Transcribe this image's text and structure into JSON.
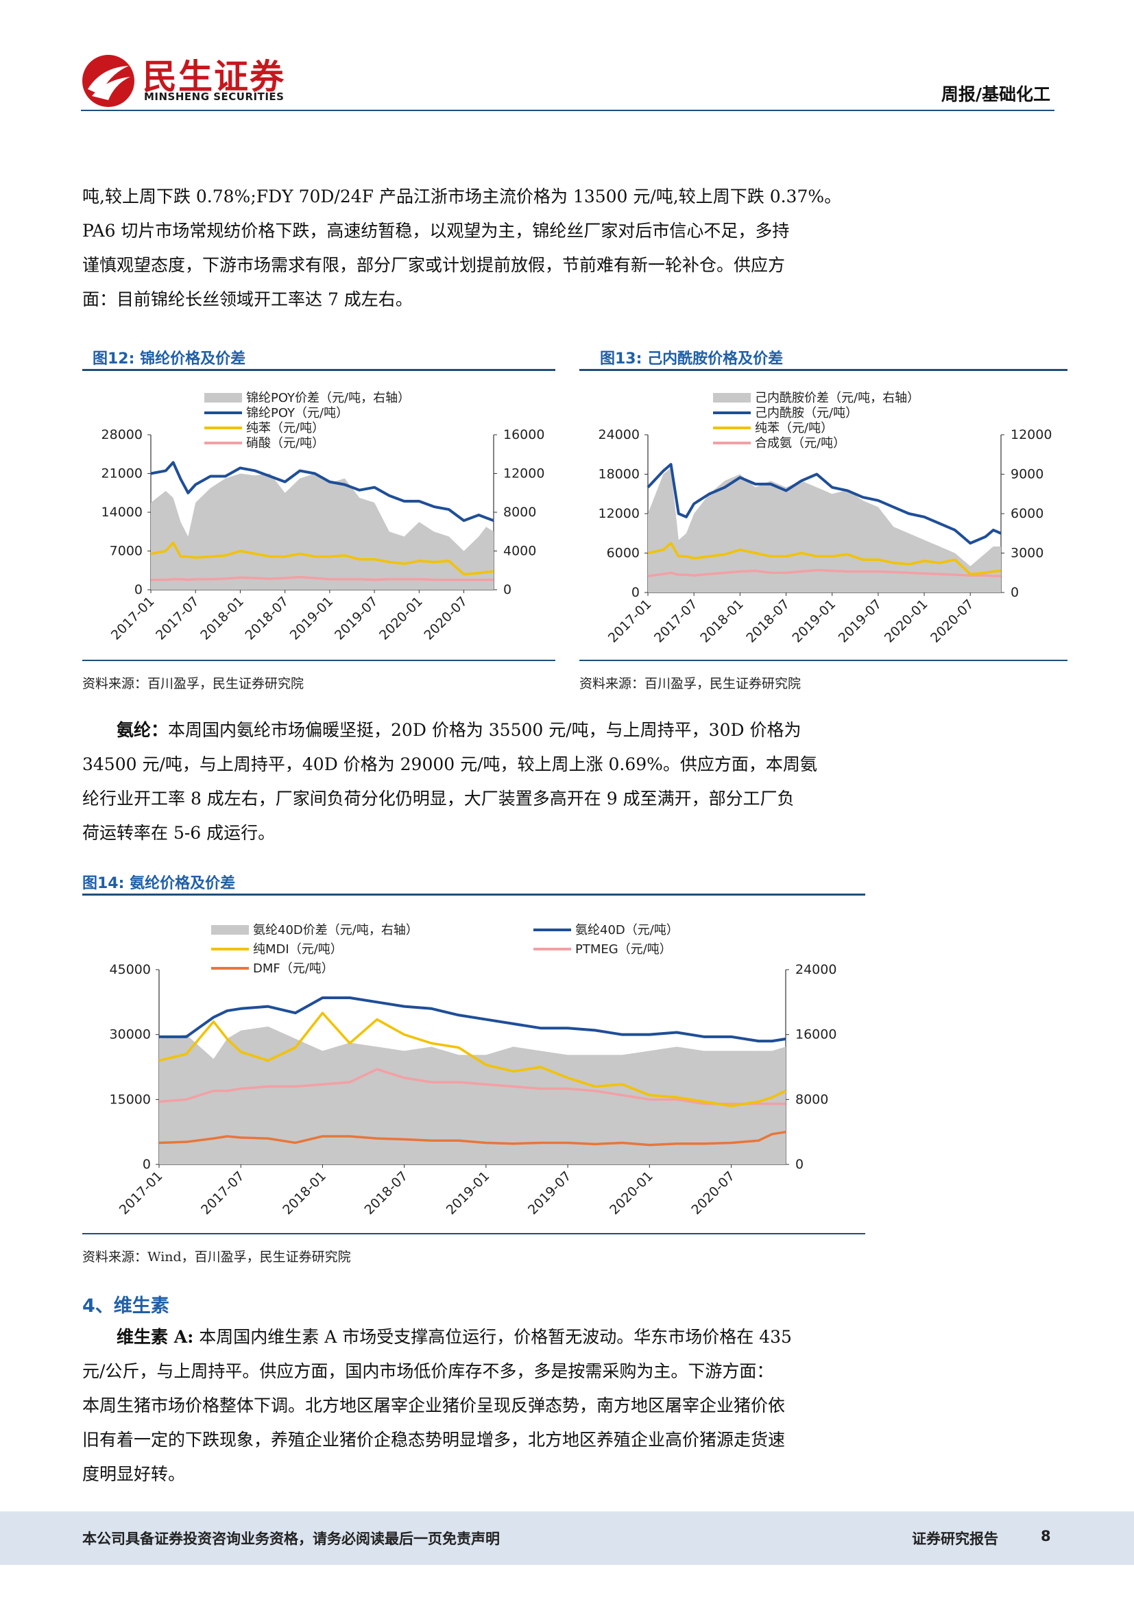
{
  "header": {
    "logo_cn": "民生证券",
    "logo_en": "MINSHENG SECURITIES",
    "report_type": "周报/基础化工"
  },
  "intro_paragraph": {
    "lines": [
      "吨,较上周下跌 0.78%;FDY 70D/24F 产品江浙市场主流价格为 13500 元/吨,较上周下跌 0.37%。",
      "PA6 切片市场常规纺价格下跌，高速纺暂稳，以观望为主，锦纶丝厂家对后市信心不足，多持",
      "谨慎观望态度，下游市场需求有限，部分厂家或计划提前放假，节前难有新一轮补仓。供应方",
      "面：目前锦纶长丝领域开工率达 7 成左右。"
    ]
  },
  "fig12": {
    "title": "图12:  锦纶价格及价差",
    "source": "资料来源：百川盈孚，民生证券研究院"
  },
  "fig13": {
    "title": "图13:  己内酰胺价格及价差",
    "source": "资料来源：百川盈孚，民生证券研究院"
  },
  "spandex_paragraph": {
    "label": "氨纶：",
    "lines": [
      "本周国内氨纶市场偏暖坚挺，20D 价格为 35500 元/吨，与上周持平，30D 价格为",
      "34500 元/吨，与上周持平，40D 价格为 29000 元/吨，较上周上涨 0.69%。供应方面，本周氨",
      "纶行业开工率 8 成左右，厂家间负荷分化仍明显，大厂装置多高开在 9 成至满开，部分工厂负",
      "荷运转率在 5-6 成运行。"
    ]
  },
  "fig14": {
    "title": "图14:  氨纶价格及价差",
    "source": "资料来源：Wind，百川盈孚，民生证券研究院"
  },
  "section4": {
    "heading": "4、维生素"
  },
  "vitamin_paragraph": {
    "label": "维生素 A:",
    "lines": [
      " 本周国内维生素 A 市场受支撑高位运行，价格暂无波动。华东市场价格在 435",
      "元/公斤，与上周持平。供应方面，国内市场低价库存不多，多是按需采购为主。下游方面：",
      "本周生猪市场价格整体下调。北方地区屠宰企业猪价呈现反弹态势，南方地区屠宰企业猪价依",
      "旧有着一定的下跌现象，养殖企业猪价企稳态势明显增多，北方地区养殖企业高价猪源走货速",
      "度明显好转。"
    ]
  },
  "footer": {
    "disclaimer": "本公司具备证券投资咨询业务资格，请务必阅读最后一页免责声明",
    "report_label": "证券研究报告",
    "page_number": "8"
  },
  "chart_data": [
    {
      "id": "fig12",
      "type": "line",
      "x_ticks": [
        "2017-01",
        "2017-07",
        "2018-01",
        "2018-07",
        "2019-01",
        "2019-07",
        "2020-01",
        "2020-07"
      ],
      "y_left_ticks": [
        "0",
        "7000",
        "14000",
        "21000",
        "28000"
      ],
      "y_right_ticks": [
        "0",
        "4000",
        "8000",
        "12000",
        "16000"
      ],
      "ylim_left": [
        0,
        28000
      ],
      "ylim_right": [
        0,
        16000
      ],
      "legend": [
        "锦纶POY价差（元/吨，右轴）",
        "锦纶POY（元/吨）",
        "纯苯（元/吨）",
        "硝酸（元/吨）"
      ],
      "colors": [
        "#c8c8c8",
        "#1f4e98",
        "#f2c200",
        "#f3a0a4"
      ],
      "x": [
        0,
        2,
        3,
        4,
        5,
        6,
        8,
        10,
        12,
        14,
        16,
        18,
        20,
        22,
        24,
        26,
        28,
        30,
        32,
        34,
        36,
        38,
        40,
        42,
        44,
        45,
        46
      ],
      "series": [
        {
          "name": "锦纶POY价差（元/吨，右轴）",
          "axis": "right",
          "values": [
            9000,
            10200,
            9500,
            7000,
            5500,
            9000,
            10500,
            11500,
            12000,
            11800,
            12000,
            10000,
            11500,
            12000,
            11000,
            11500,
            9500,
            9000,
            6000,
            5500,
            7000,
            6000,
            5500,
            4000,
            5500,
            6500,
            6000
          ]
        },
        {
          "name": "锦纶POY（元/吨）",
          "axis": "left",
          "values": [
            21000,
            21500,
            23000,
            20000,
            17500,
            19000,
            20500,
            20500,
            22000,
            21500,
            20500,
            19500,
            21500,
            21000,
            19500,
            19000,
            18000,
            18500,
            17000,
            16000,
            16000,
            15000,
            14500,
            12500,
            13500,
            13000,
            12500
          ]
        },
        {
          "name": "纯苯（元/吨）",
          "axis": "left",
          "values": [
            6500,
            7000,
            8500,
            6000,
            6000,
            5800,
            6000,
            6200,
            7000,
            6500,
            6000,
            6000,
            6500,
            6000,
            6000,
            6200,
            5500,
            5500,
            5000,
            4700,
            5200,
            5000,
            5200,
            2800,
            3000,
            3200,
            3300
          ]
        },
        {
          "name": "硝酸（元/吨）",
          "axis": "left",
          "values": [
            1800,
            1800,
            1900,
            1900,
            1800,
            1900,
            1900,
            2000,
            2200,
            2100,
            2000,
            2100,
            2300,
            2100,
            1900,
            1900,
            1900,
            1800,
            1900,
            1900,
            1900,
            1800,
            1800,
            1800,
            1800,
            1800,
            1800
          ]
        }
      ]
    },
    {
      "id": "fig13",
      "type": "line",
      "x_ticks": [
        "2017-01",
        "2017-07",
        "2018-01",
        "2018-07",
        "2019-01",
        "2019-07",
        "2020-01",
        "2020-07"
      ],
      "y_left_ticks": [
        "0",
        "6000",
        "12000",
        "18000",
        "24000"
      ],
      "y_right_ticks": [
        "0",
        "3000",
        "6000",
        "9000",
        "12000"
      ],
      "ylim_left": [
        0,
        24000
      ],
      "ylim_right": [
        0,
        12000
      ],
      "legend": [
        "己内酰胺价差（元/吨，右轴）",
        "己内酰胺（元/吨）",
        "纯苯（元/吨）",
        "合成氨（元/吨）"
      ],
      "colors": [
        "#c8c8c8",
        "#1f4e98",
        "#f2c200",
        "#f3a0a4"
      ],
      "x": [
        0,
        2,
        3,
        4,
        5,
        6,
        8,
        10,
        12,
        14,
        16,
        18,
        20,
        22,
        24,
        26,
        28,
        30,
        32,
        34,
        36,
        38,
        40,
        42,
        44,
        45,
        46
      ],
      "series": [
        {
          "name": "己内酰胺价差（元/吨，右轴）",
          "axis": "right",
          "values": [
            6000,
            9000,
            9500,
            4000,
            4500,
            6000,
            7500,
            8500,
            9000,
            8000,
            8500,
            8000,
            8500,
            8000,
            7500,
            7800,
            7000,
            6500,
            5000,
            4500,
            4000,
            3500,
            3000,
            2000,
            3000,
            3500,
            3500
          ]
        },
        {
          "name": "己内酰胺（元/吨）",
          "axis": "left",
          "values": [
            16000,
            18500,
            19500,
            12000,
            11500,
            13500,
            15000,
            16000,
            17500,
            16500,
            16500,
            15500,
            17000,
            18000,
            16000,
            15500,
            14500,
            14000,
            13000,
            12000,
            11500,
            10500,
            9500,
            7500,
            8500,
            9500,
            9000
          ]
        },
        {
          "name": "纯苯（元/吨）",
          "axis": "left",
          "values": [
            6000,
            6500,
            7500,
            5500,
            5500,
            5200,
            5500,
            5800,
            6500,
            6000,
            5500,
            5500,
            6000,
            5500,
            5500,
            5800,
            5000,
            5000,
            4500,
            4300,
            4800,
            4500,
            5000,
            2800,
            3000,
            3200,
            3300
          ]
        },
        {
          "name": "合成氨（元/吨）",
          "axis": "left",
          "values": [
            2500,
            2800,
            3000,
            2700,
            2700,
            2600,
            2800,
            3000,
            3200,
            3300,
            3000,
            3000,
            3200,
            3400,
            3300,
            3200,
            3200,
            3200,
            3100,
            3000,
            2900,
            2800,
            2700,
            2600,
            2600,
            2500,
            2500
          ]
        }
      ]
    },
    {
      "id": "fig14",
      "type": "line",
      "x_ticks": [
        "2017-01",
        "2017-07",
        "2018-01",
        "2018-07",
        "2019-01",
        "2019-07",
        "2020-01",
        "2020-07"
      ],
      "y_left_ticks": [
        "0",
        "15000",
        "30000",
        "45000"
      ],
      "y_right_ticks": [
        "0",
        "8000",
        "16000",
        "24000"
      ],
      "ylim_left": [
        0,
        45000
      ],
      "ylim_right": [
        0,
        24000
      ],
      "legend": [
        "氨纶40D价差（元/吨，右轴）",
        "氨纶40D（元/吨）",
        "纯MDI（元/吨）",
        "PTMEG（元/吨）",
        "DMF（元/吨）"
      ],
      "colors": [
        "#c8c8c8",
        "#1f4e98",
        "#f2c200",
        "#f3a0a4",
        "#e8763a"
      ],
      "x": [
        0,
        2,
        4,
        5,
        6,
        8,
        10,
        12,
        14,
        16,
        18,
        20,
        22,
        24,
        26,
        28,
        30,
        32,
        34,
        36,
        38,
        40,
        42,
        44,
        45,
        46
      ],
      "series": [
        {
          "name": "氨纶40D价差（元/吨，右轴）",
          "axis": "right",
          "values": [
            15500,
            16000,
            13000,
            15500,
            16500,
            17000,
            15500,
            14000,
            15000,
            14500,
            14000,
            14500,
            13500,
            13500,
            14500,
            14000,
            13500,
            13500,
            13500,
            14000,
            14500,
            14000,
            14000,
            14000,
            14000,
            14500
          ]
        },
        {
          "name": "氨纶40D（元/吨）",
          "axis": "left",
          "values": [
            29500,
            29500,
            34000,
            35500,
            36000,
            36500,
            35000,
            38500,
            38500,
            37500,
            36500,
            36000,
            34500,
            33500,
            32500,
            31500,
            31500,
            31000,
            30000,
            30000,
            30500,
            29500,
            29500,
            28500,
            28500,
            29000
          ]
        },
        {
          "name": "纯MDI（元/吨）",
          "axis": "left",
          "values": [
            24000,
            25500,
            33000,
            29000,
            26000,
            24000,
            27000,
            35000,
            28000,
            33500,
            30000,
            28000,
            27000,
            23000,
            21500,
            22500,
            20000,
            18000,
            18500,
            16000,
            15500,
            14500,
            13500,
            14500,
            15500,
            17000
          ]
        },
        {
          "name": "PTMEG（元/吨）",
          "axis": "left",
          "values": [
            14500,
            15000,
            17000,
            17000,
            17500,
            18000,
            18000,
            18500,
            19000,
            22000,
            20000,
            19000,
            19000,
            18500,
            18000,
            17500,
            17500,
            17000,
            16000,
            15000,
            15000,
            14000,
            14000,
            14000,
            14000,
            14000
          ]
        },
        {
          "name": "DMF（元/吨）",
          "axis": "left",
          "values": [
            5000,
            5200,
            6000,
            6500,
            6200,
            6000,
            5000,
            6500,
            6500,
            6000,
            5800,
            5500,
            5500,
            5000,
            4800,
            5000,
            5000,
            4700,
            5000,
            4500,
            4800,
            4800,
            5000,
            5500,
            7000,
            7500
          ]
        }
      ]
    }
  ]
}
